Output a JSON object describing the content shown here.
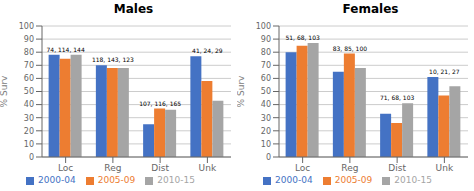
{
  "chart_data": [
    {
      "type": "bar",
      "title": "Males",
      "categories": [
        "Loc",
        "Reg",
        "Dist",
        "Unk"
      ],
      "series": [
        {
          "name": "2000-04",
          "color": "#4472C4",
          "values": [
            78,
            70,
            25,
            77
          ]
        },
        {
          "name": "2005-09",
          "color": "#ED7D31",
          "values": [
            75,
            68,
            37,
            58
          ]
        },
        {
          "name": "2010-15",
          "color": "#A5A5A5",
          "values": [
            78,
            68,
            36,
            43
          ]
        }
      ],
      "annotations": [
        "74, 114, 144",
        "118, 143, 123",
        "107, 116, 165",
        "41, 24, 29"
      ],
      "ylabel": "% Surv",
      "ylim": [
        0,
        100
      ],
      "yticks": [
        0,
        10,
        20,
        30,
        40,
        50,
        60,
        70,
        80,
        90,
        100
      ],
      "grid": true,
      "legend": "bottom"
    },
    {
      "type": "bar",
      "title": "Females",
      "categories": [
        "Loc",
        "Reg",
        "Dist",
        "Unk"
      ],
      "series": [
        {
          "name": "2000-04",
          "color": "#4472C4",
          "values": [
            80,
            65,
            33,
            61
          ]
        },
        {
          "name": "2005-09",
          "color": "#ED7D31",
          "values": [
            85,
            79,
            26,
            47
          ]
        },
        {
          "name": "2010-15",
          "color": "#A5A5A5",
          "values": [
            87,
            68,
            41,
            54
          ]
        }
      ],
      "annotations": [
        "51, 68, 103",
        "83, 85, 100",
        "71, 68, 103",
        "10, 21, 27"
      ],
      "ylabel": "% Surv",
      "ylim": [
        0,
        100
      ],
      "yticks": [
        0,
        10,
        20,
        30,
        40,
        50,
        60,
        70,
        80,
        90,
        100
      ],
      "grid": true,
      "legend": "bottom"
    }
  ]
}
